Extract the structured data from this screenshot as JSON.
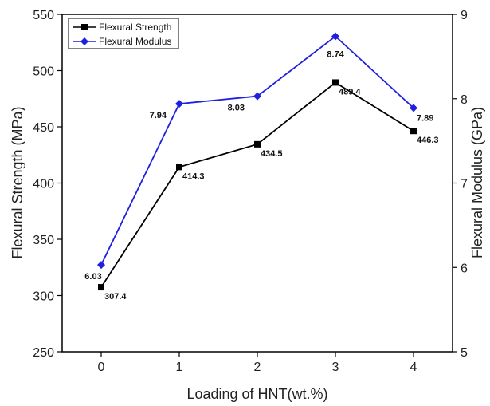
{
  "chart_data": {
    "type": "line",
    "xlabel": "Loading of HNT(wt.%)",
    "ylabel_left": "Flexural Strength (MPa)",
    "ylabel_right": "Flexural Modulus (GPa)",
    "x": [
      0,
      1,
      2,
      3,
      4
    ],
    "xlim": [
      -0.5,
      4.5
    ],
    "xticks": [
      0,
      1,
      2,
      3,
      4
    ],
    "ylim_left": [
      250,
      550
    ],
    "yticks_left": [
      250,
      300,
      350,
      400,
      450,
      500,
      550
    ],
    "ylim_right": [
      5,
      9
    ],
    "yticks_right": [
      5,
      6,
      7,
      8,
      9
    ],
    "grid": false,
    "legend_position": "top-left",
    "series": [
      {
        "name": "Flexural Strength",
        "axis": "left",
        "color": "#000000",
        "marker": "square",
        "values": [
          307.4,
          414.3,
          434.5,
          489.4,
          446.3
        ],
        "labels": [
          "307.4",
          "414.3",
          "434.5",
          "489.4",
          "446.3"
        ]
      },
      {
        "name": "Flexural Modulus",
        "axis": "right",
        "color": "#1f1fe0",
        "marker": "diamond",
        "values": [
          6.03,
          7.94,
          8.03,
          8.74,
          7.89
        ],
        "labels": [
          "6.03",
          "7.94",
          "8.03",
          "8.74",
          "7.89"
        ]
      }
    ]
  }
}
